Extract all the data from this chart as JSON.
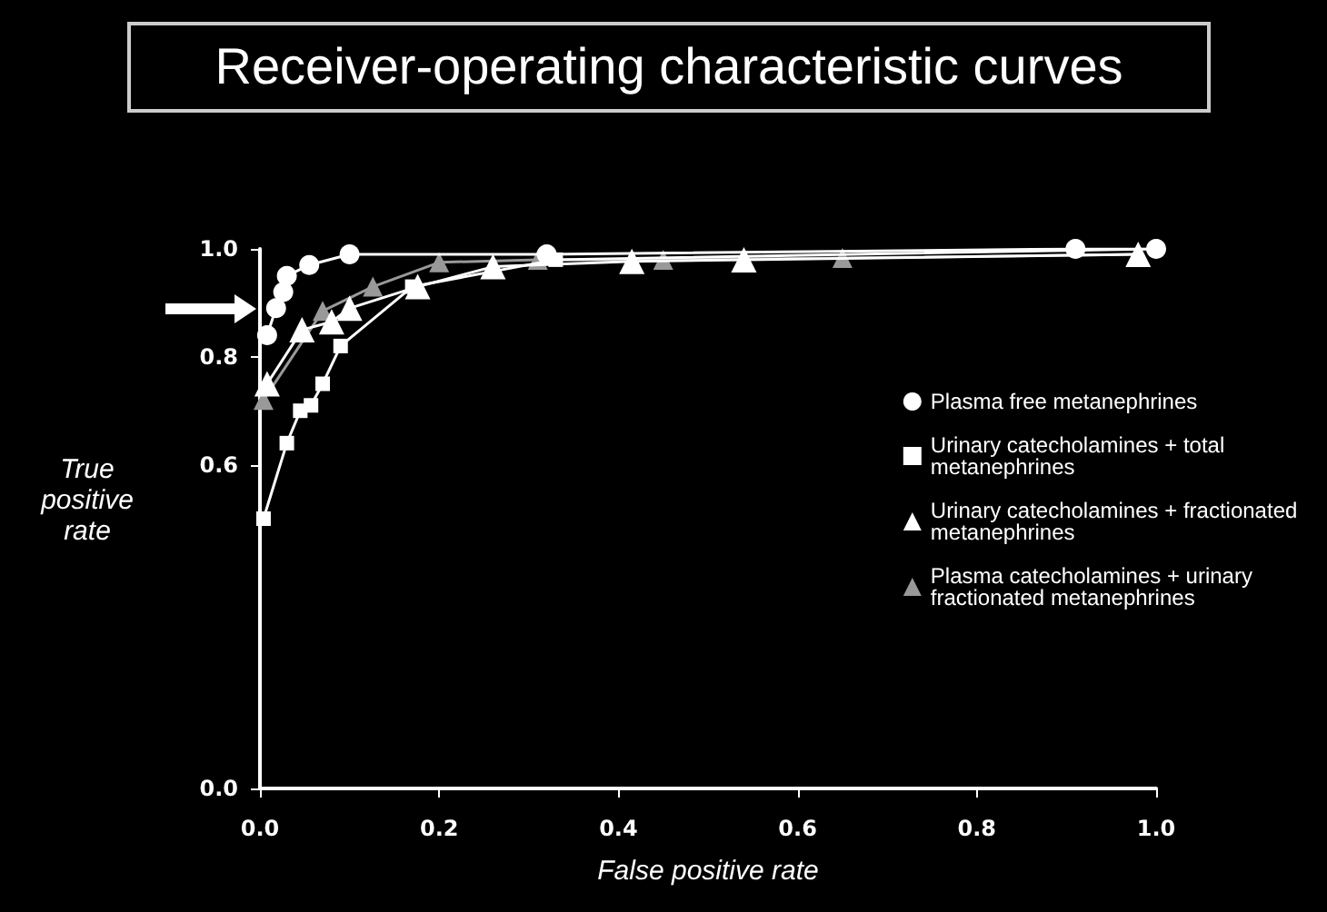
{
  "chart_data": {
    "type": "line",
    "title": "Receiver-operating characteristic curves",
    "xlabel": "False positive rate",
    "ylabel": "True positive rate",
    "xlim": [
      0,
      1
    ],
    "ylim": [
      0,
      1
    ],
    "xticks": [
      {
        "value": 0,
        "label": "0.0"
      },
      {
        "value": 0.2,
        "label": "0.2"
      },
      {
        "value": 0.4,
        "label": "0.4"
      },
      {
        "value": 0.6,
        "label": "0.6"
      },
      {
        "value": 0.8,
        "label": "0.8"
      },
      {
        "value": 1,
        "label": "1.0"
      }
    ],
    "yticks": [
      {
        "value": 0,
        "label": "0.0"
      },
      {
        "value": 0.6,
        "label": "0.6"
      },
      {
        "value": 0.8,
        "label": "0.8"
      },
      {
        "value": 1,
        "label": "1.0"
      }
    ],
    "grid": false,
    "legend": "right",
    "line_style": "solid",
    "series": [
      {
        "name": "Plasma free metanephrines",
        "color": "#ffffff",
        "marker": "circle",
        "x": [
          0.008,
          0.018,
          0.026,
          0.03,
          0.055,
          0.1,
          0.32,
          0.91,
          1.0
        ],
        "values": [
          0.84,
          0.89,
          0.92,
          0.95,
          0.97,
          0.99,
          0.99,
          1.0,
          1.0
        ]
      },
      {
        "name": "Urinary catecholamines + total metanephrines",
        "color": "#ffffff",
        "marker": "square",
        "x": [
          0.004,
          0.03,
          0.045,
          0.057,
          0.07,
          0.09,
          0.17,
          0.33,
          1.0
        ],
        "values": [
          0.5,
          0.64,
          0.7,
          0.71,
          0.75,
          0.82,
          0.93,
          0.98,
          1.0
        ]
      },
      {
        "name": "Urinary catecholamines + fractionated metanephrines",
        "color": "#ffffff",
        "marker": "triangle",
        "x": [
          0.008,
          0.047,
          0.08,
          0.1,
          0.176,
          0.26,
          0.415,
          0.54,
          0.98
        ],
        "values": [
          0.75,
          0.85,
          0.865,
          0.89,
          0.93,
          0.967,
          0.977,
          0.98,
          0.99
        ]
      },
      {
        "name": "Plasma catecholamines + urinary fractionated metanephrines",
        "color": "#999999",
        "marker": "triangle",
        "x": [
          0.004,
          0.07,
          0.126,
          0.2,
          0.31,
          0.45,
          0.65,
          0.98
        ],
        "values": [
          0.72,
          0.885,
          0.93,
          0.975,
          0.98,
          0.98,
          0.983,
          0.99
        ]
      }
    ]
  }
}
